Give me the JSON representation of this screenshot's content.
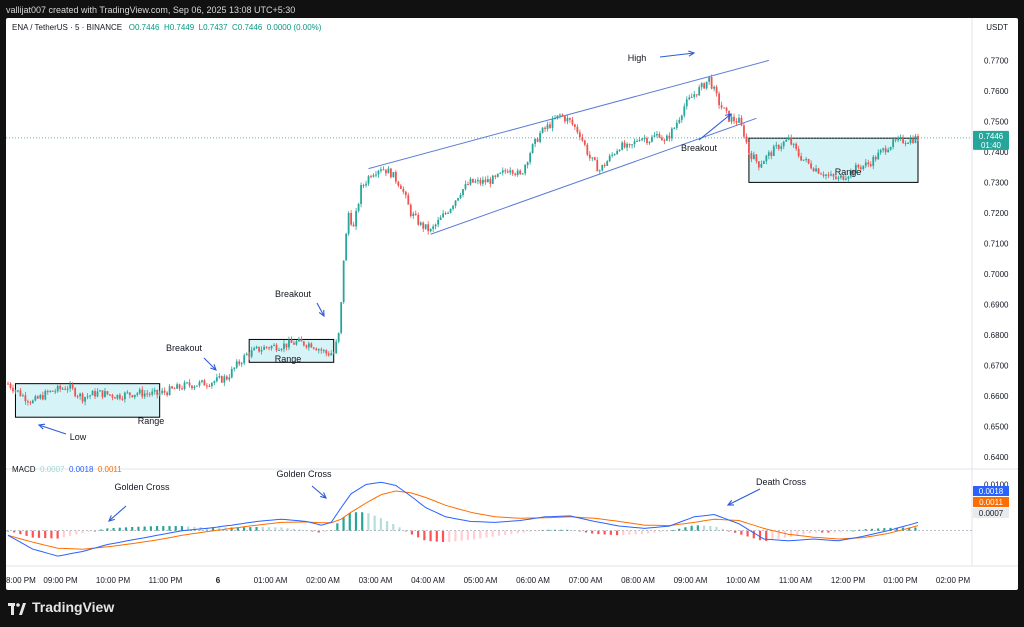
{
  "header": {
    "attribution": "vallijat007 created with TradingView.com, Sep 06, 2025 13:08 UTC+5:30"
  },
  "legend": {
    "symbol": "ENA / TetherUS · 5 · BINANCE",
    "open": "O0.7446",
    "high": "H0.7449",
    "low": "L0.7437",
    "close": "C0.7446",
    "change": "0.0000 (0.00%)"
  },
  "currency": "USDT",
  "price_tag": {
    "value": "0.7446",
    "countdown": "01:40"
  },
  "macd_legend": {
    "name": "MACD",
    "hist": "0.0007",
    "macd": "0.0018",
    "signal": "0.0011"
  },
  "macd_tags": [
    "0.0018",
    "0.0011",
    "0.0007"
  ],
  "brand": "TradingView",
  "colors": {
    "up": "#26a69a",
    "down": "#ef5350",
    "trendline": "#5b7bd5",
    "macd": "#2962ff",
    "signal": "#ff6d00",
    "box_fill": "#d6f3f8",
    "annotation": "#2d5bd8"
  },
  "annotations": {
    "low": "Low",
    "range1": "Range",
    "breakout1": "Breakout",
    "range2": "Range",
    "breakout2": "Breakout",
    "high": "High",
    "breakout3": "Breakout",
    "range3": "Range",
    "golden_cross1": "Golden Cross",
    "golden_cross2": "Golden Cross",
    "death_cross": "Death Cross"
  },
  "chart_data": {
    "type": "candlestick",
    "ylim": [
      0.637,
      0.778
    ],
    "y_ticks": [
      "0.6400",
      "0.6500",
      "0.6600",
      "0.6700",
      "0.6800",
      "0.6900",
      "0.7000",
      "0.7100",
      "0.7200",
      "0.7300",
      "0.7400",
      "0.7500",
      "0.7600",
      "0.7700"
    ],
    "x_ticks": [
      "8:00 PM",
      "09:00 PM",
      "10:00 PM",
      "11:00 PM",
      "6",
      "01:00 AM",
      "02:00 AM",
      "03:00 AM",
      "04:00 AM",
      "05:00 AM",
      "06:00 AM",
      "07:00 AM",
      "08:00 AM",
      "09:00 AM",
      "10:00 AM",
      "11:00 AM",
      "12:00 PM",
      "01:00 PM",
      "02:00 PM"
    ],
    "macd_ticks": [
      "0.0100"
    ],
    "close_path": [
      [
        0,
        0.664
      ],
      [
        6,
        0.66
      ],
      [
        10,
        0.658
      ],
      [
        16,
        0.661
      ],
      [
        24,
        0.663
      ],
      [
        30,
        0.6595
      ],
      [
        36,
        0.661
      ],
      [
        44,
        0.66
      ],
      [
        52,
        0.661
      ],
      [
        60,
        0.6605
      ],
      [
        66,
        0.662
      ],
      [
        72,
        0.6635
      ],
      [
        78,
        0.664
      ],
      [
        84,
        0.665
      ],
      [
        88,
        0.666
      ],
      [
        92,
        0.67
      ],
      [
        96,
        0.6735
      ],
      [
        100,
        0.675
      ],
      [
        104,
        0.676
      ],
      [
        110,
        0.6765
      ],
      [
        116,
        0.6775
      ],
      [
        122,
        0.677
      ],
      [
        128,
        0.674
      ],
      [
        131,
        0.674
      ],
      [
        133,
        0.68
      ],
      [
        134,
        0.69
      ],
      [
        135,
        0.705
      ],
      [
        137,
        0.72
      ],
      [
        139,
        0.715
      ],
      [
        142,
        0.728
      ],
      [
        146,
        0.733
      ],
      [
        150,
        0.735
      ],
      [
        154,
        0.733
      ],
      [
        158,
        0.729
      ],
      [
        162,
        0.72
      ],
      [
        166,
        0.716
      ],
      [
        170,
        0.714
      ],
      [
        174,
        0.718
      ],
      [
        178,
        0.722
      ],
      [
        182,
        0.727
      ],
      [
        186,
        0.73
      ],
      [
        190,
        0.73
      ],
      [
        196,
        0.731
      ],
      [
        202,
        0.735
      ],
      [
        206,
        0.732
      ],
      [
        210,
        0.74
      ],
      [
        214,
        0.746
      ],
      [
        218,
        0.749
      ],
      [
        222,
        0.752
      ],
      [
        226,
        0.75
      ],
      [
        230,
        0.746
      ],
      [
        234,
        0.738
      ],
      [
        238,
        0.734
      ],
      [
        242,
        0.738
      ],
      [
        246,
        0.742
      ],
      [
        250,
        0.741
      ],
      [
        254,
        0.745
      ],
      [
        258,
        0.744
      ],
      [
        262,
        0.746
      ],
      [
        264,
        0.743
      ],
      [
        268,
        0.748
      ],
      [
        272,
        0.755
      ],
      [
        276,
        0.759
      ],
      [
        280,
        0.762
      ],
      [
        282,
        0.764
      ],
      [
        286,
        0.756
      ],
      [
        290,
        0.751
      ],
      [
        294,
        0.75
      ],
      [
        296,
        0.746
      ],
      [
        298,
        0.74
      ],
      [
        302,
        0.736
      ],
      [
        306,
        0.739
      ],
      [
        310,
        0.742
      ],
      [
        314,
        0.744
      ],
      [
        318,
        0.739
      ],
      [
        322,
        0.736
      ],
      [
        326,
        0.734
      ],
      [
        330,
        0.732
      ],
      [
        334,
        0.731
      ],
      [
        338,
        0.733
      ],
      [
        342,
        0.735
      ],
      [
        346,
        0.736
      ],
      [
        350,
        0.739
      ],
      [
        354,
        0.742
      ],
      [
        358,
        0.7435
      ],
      [
        362,
        0.744
      ],
      [
        366,
        0.7446
      ]
    ],
    "macd_ylim": [
      -0.007,
      0.0125
    ],
    "macd_series": [
      [
        0,
        -0.001
      ],
      [
        10,
        -0.004
      ],
      [
        20,
        -0.0055
      ],
      [
        30,
        -0.0045
      ],
      [
        40,
        -0.003
      ],
      [
        50,
        -0.002
      ],
      [
        60,
        -0.001
      ],
      [
        70,
        0.0
      ],
      [
        80,
        0.0005
      ],
      [
        90,
        0.0012
      ],
      [
        100,
        0.002
      ],
      [
        110,
        0.0025
      ],
      [
        120,
        0.002
      ],
      [
        126,
        0.0012
      ],
      [
        130,
        0.0018
      ],
      [
        134,
        0.005
      ],
      [
        138,
        0.008
      ],
      [
        144,
        0.01
      ],
      [
        150,
        0.0105
      ],
      [
        156,
        0.0098
      ],
      [
        162,
        0.0075
      ],
      [
        168,
        0.005
      ],
      [
        176,
        0.003
      ],
      [
        186,
        0.002
      ],
      [
        196,
        0.0018
      ],
      [
        206,
        0.0022
      ],
      [
        216,
        0.003
      ],
      [
        226,
        0.0032
      ],
      [
        236,
        0.002
      ],
      [
        246,
        0.001
      ],
      [
        256,
        0.0005
      ],
      [
        266,
        0.001
      ],
      [
        276,
        0.003
      ],
      [
        284,
        0.0035
      ],
      [
        294,
        0.0015
      ],
      [
        304,
        -0.0018
      ],
      [
        314,
        -0.0022
      ],
      [
        324,
        -0.0018
      ],
      [
        334,
        -0.0022
      ],
      [
        344,
        -0.0012
      ],
      [
        354,
        0.0
      ],
      [
        362,
        0.0012
      ],
      [
        366,
        0.0018
      ]
    ],
    "signal_series": [
      [
        0,
        -0.001
      ],
      [
        10,
        -0.0025
      ],
      [
        20,
        -0.0038
      ],
      [
        30,
        -0.004
      ],
      [
        40,
        -0.0035
      ],
      [
        50,
        -0.0028
      ],
      [
        60,
        -0.002
      ],
      [
        70,
        -0.001
      ],
      [
        80,
        -0.0002
      ],
      [
        90,
        0.0005
      ],
      [
        100,
        0.0012
      ],
      [
        110,
        0.0018
      ],
      [
        120,
        0.0019
      ],
      [
        126,
        0.0017
      ],
      [
        130,
        0.0017
      ],
      [
        134,
        0.0025
      ],
      [
        138,
        0.004
      ],
      [
        144,
        0.006
      ],
      [
        150,
        0.0078
      ],
      [
        156,
        0.0086
      ],
      [
        162,
        0.0082
      ],
      [
        168,
        0.0072
      ],
      [
        176,
        0.0055
      ],
      [
        186,
        0.004
      ],
      [
        196,
        0.003
      ],
      [
        206,
        0.0027
      ],
      [
        216,
        0.0028
      ],
      [
        226,
        0.003
      ],
      [
        236,
        0.0027
      ],
      [
        246,
        0.002
      ],
      [
        256,
        0.0012
      ],
      [
        266,
        0.0011
      ],
      [
        276,
        0.0018
      ],
      [
        284,
        0.0025
      ],
      [
        294,
        0.0022
      ],
      [
        304,
        0.0005
      ],
      [
        314,
        -0.0008
      ],
      [
        324,
        -0.0014
      ],
      [
        334,
        -0.0018
      ],
      [
        344,
        -0.0015
      ],
      [
        354,
        -0.0006
      ],
      [
        362,
        0.0005
      ],
      [
        366,
        0.0011
      ]
    ]
  }
}
